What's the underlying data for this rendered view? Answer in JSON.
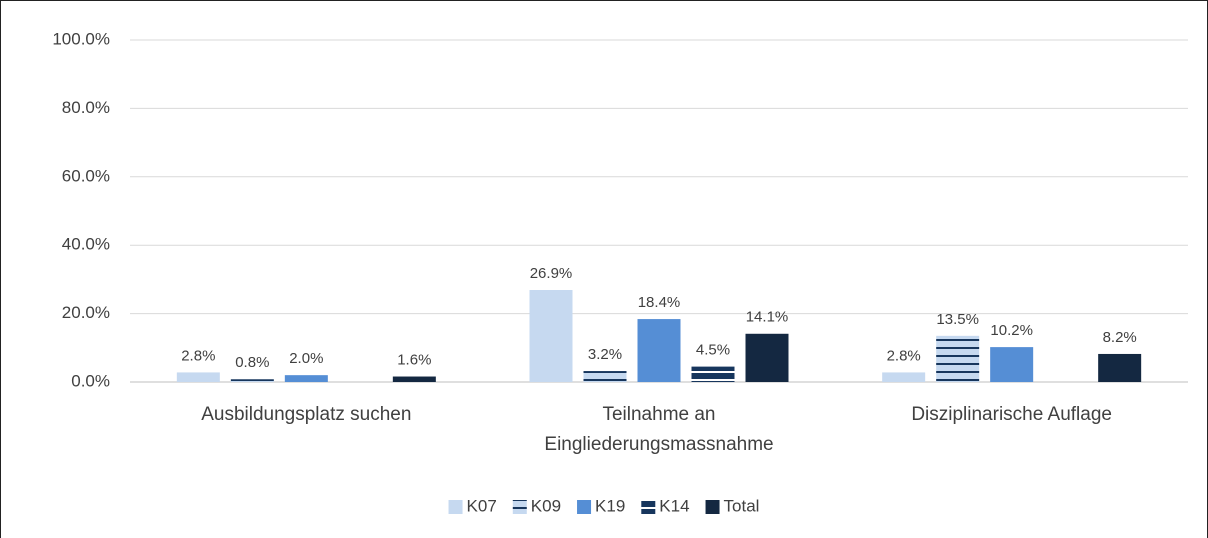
{
  "chart_data": {
    "type": "bar",
    "categories": [
      "Ausbildungsplatz suchen",
      "Teilnahme an Eingliederungsmassnahme",
      "Disziplinarische Auflage"
    ],
    "series": [
      {
        "name": "K07",
        "color": "#c6d9f0",
        "values": [
          2.8,
          26.9,
          2.8
        ],
        "value_labels": [
          "2.8%",
          "26.9%",
          "2.8%"
        ]
      },
      {
        "name": "K09",
        "color": "#c6d9f0",
        "stripe_color": "#17365d",
        "pattern": "horizontal-lines",
        "values": [
          0.8,
          3.2,
          13.5
        ],
        "value_labels": [
          "0.8%",
          "3.2%",
          "13.5%"
        ]
      },
      {
        "name": "K19",
        "color": "#558ed5",
        "values": [
          2.0,
          18.4,
          10.2
        ],
        "value_labels": [
          "2.0%",
          "18.4%",
          "10.2%"
        ]
      },
      {
        "name": "K14",
        "color": "#17365d",
        "stripe_color": "#ffffff",
        "pattern": "horizontal-lines",
        "values": [
          null,
          4.5,
          null
        ],
        "value_labels": [
          null,
          "4.5%",
          null
        ]
      },
      {
        "name": "Total",
        "color": "#142841",
        "values": [
          1.6,
          14.1,
          8.2
        ],
        "value_labels": [
          "1.6%",
          "14.1%",
          "8.2%"
        ]
      }
    ],
    "ylim": [
      0,
      100
    ],
    "yticks": [
      {
        "value": 0,
        "label": "0.0%"
      },
      {
        "value": 20,
        "label": "20.0%"
      },
      {
        "value": 40,
        "label": "40.0%"
      },
      {
        "value": 60,
        "label": "60.0%"
      },
      {
        "value": 80,
        "label": "80.0%"
      },
      {
        "value": 100,
        "label": "100.0%"
      }
    ],
    "grid": true,
    "legend": "bottom"
  }
}
